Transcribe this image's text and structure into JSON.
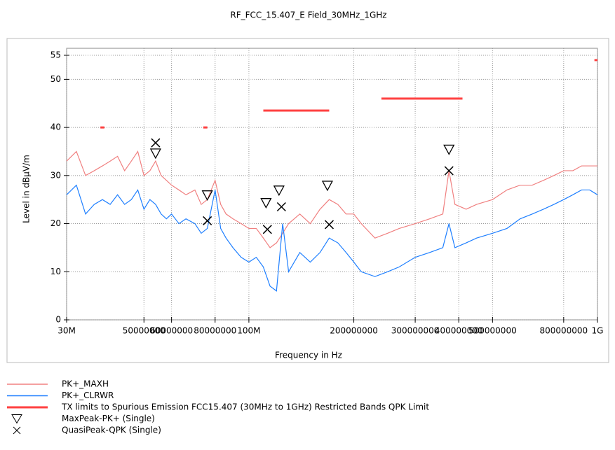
{
  "chart_data": {
    "type": "line",
    "title": "RF_FCC_15.407_E Field_30MHz_1GHz",
    "x_label": "Frequency in Hz",
    "y_label": "Level in dBµV/m",
    "xscale": "log",
    "grid": true,
    "xlim": [
      30000000,
      1000000000
    ],
    "ylim": [
      0,
      55
    ],
    "yticks": [
      0,
      10,
      20,
      30,
      40,
      50,
      55
    ],
    "xticks": [
      {
        "value": 30000000,
        "label": "30M"
      },
      50000000,
      60000000,
      80000000,
      {
        "value": 100000000,
        "label": "100M"
      },
      200000000,
      300000000,
      400000000,
      500000000,
      800000000,
      {
        "value": 1000000000,
        "label": "1G"
      }
    ],
    "x": [
      30000000,
      32000000,
      34000000,
      36000000,
      38000000,
      40000000,
      42000000,
      44000000,
      46000000,
      48000000,
      50000000,
      52000000,
      54000000,
      56000000,
      58000000,
      60000000,
      63000000,
      66000000,
      70000000,
      73000000,
      76000000,
      80000000,
      83000000,
      86000000,
      90000000,
      95000000,
      100000000,
      105000000,
      110000000,
      115000000,
      120000000,
      125000000,
      130000000,
      140000000,
      150000000,
      160000000,
      170000000,
      180000000,
      190000000,
      200000000,
      210000000,
      230000000,
      250000000,
      270000000,
      300000000,
      330000000,
      360000000,
      375000000,
      390000000,
      420000000,
      450000000,
      500000000,
      550000000,
      600000000,
      650000000,
      700000000,
      750000000,
      800000000,
      850000000,
      900000000,
      950000000,
      1000000000
    ],
    "series": [
      {
        "name": "PK+_MAXH",
        "color": "#f08080",
        "values": [
          33,
          35,
          30,
          31,
          32,
          33,
          34,
          31,
          33,
          35,
          30,
          31,
          33,
          30,
          29,
          28,
          27,
          26,
          27,
          24,
          25,
          29,
          24,
          22,
          21,
          20,
          19,
          19,
          17,
          15,
          16,
          18,
          20,
          22,
          20,
          23,
          25,
          24,
          22,
          22,
          20,
          17,
          18,
          19,
          20,
          21,
          22,
          31,
          24,
          23,
          24,
          25,
          27,
          28,
          28,
          29,
          30,
          31,
          31,
          32,
          32,
          32
        ]
      },
      {
        "name": "PK+_CLRWR",
        "color": "#1e7fff",
        "values": [
          26,
          28,
          22,
          24,
          25,
          24,
          26,
          24,
          25,
          27,
          23,
          25,
          24,
          22,
          21,
          22,
          20,
          21,
          20,
          18,
          19,
          27,
          19,
          17,
          15,
          13,
          12,
          13,
          11,
          7,
          6,
          20,
          10,
          14,
          12,
          14,
          17,
          16,
          14,
          12,
          10,
          9,
          10,
          11,
          13,
          14,
          15,
          20,
          15,
          16,
          17,
          18,
          19,
          21,
          22,
          23,
          24,
          25,
          26,
          27,
          27,
          26
        ]
      },
      {
        "name": "TX limits to Spurious Emission FCC15.407 (30MHz to 1GHz) Restricted Bands QPK Limit",
        "color": "#ff4040",
        "x": [
          37500000,
          38500000,
          39000000,
          74000000,
          76000000,
          77000000,
          110000000,
          170000000,
          171000000,
          240000000,
          410000000,
          411000000,
          980000000,
          1000000000
        ],
        "values": [
          40,
          40,
          null,
          40,
          40,
          null,
          43.5,
          43.5,
          null,
          46,
          46,
          null,
          54,
          54
        ]
      },
      {
        "name": "MaxPeak-PK+ (Single)",
        "color": "#000000",
        "marker": "triangle",
        "x": [
          54000000,
          76000000,
          112000000,
          122000000,
          168000000,
          375000000
        ],
        "values": [
          34.5,
          25.8,
          24.2,
          26.8,
          27.8,
          35.3
        ]
      },
      {
        "name": "QuasiPeak-QPK (Single)",
        "color": "#000000",
        "marker": "x",
        "x": [
          54000000,
          76000000,
          113000000,
          124000000,
          170000000,
          375000000
        ],
        "values": [
          36.8,
          20.6,
          18.8,
          23.5,
          19.8,
          31
        ]
      }
    ]
  }
}
